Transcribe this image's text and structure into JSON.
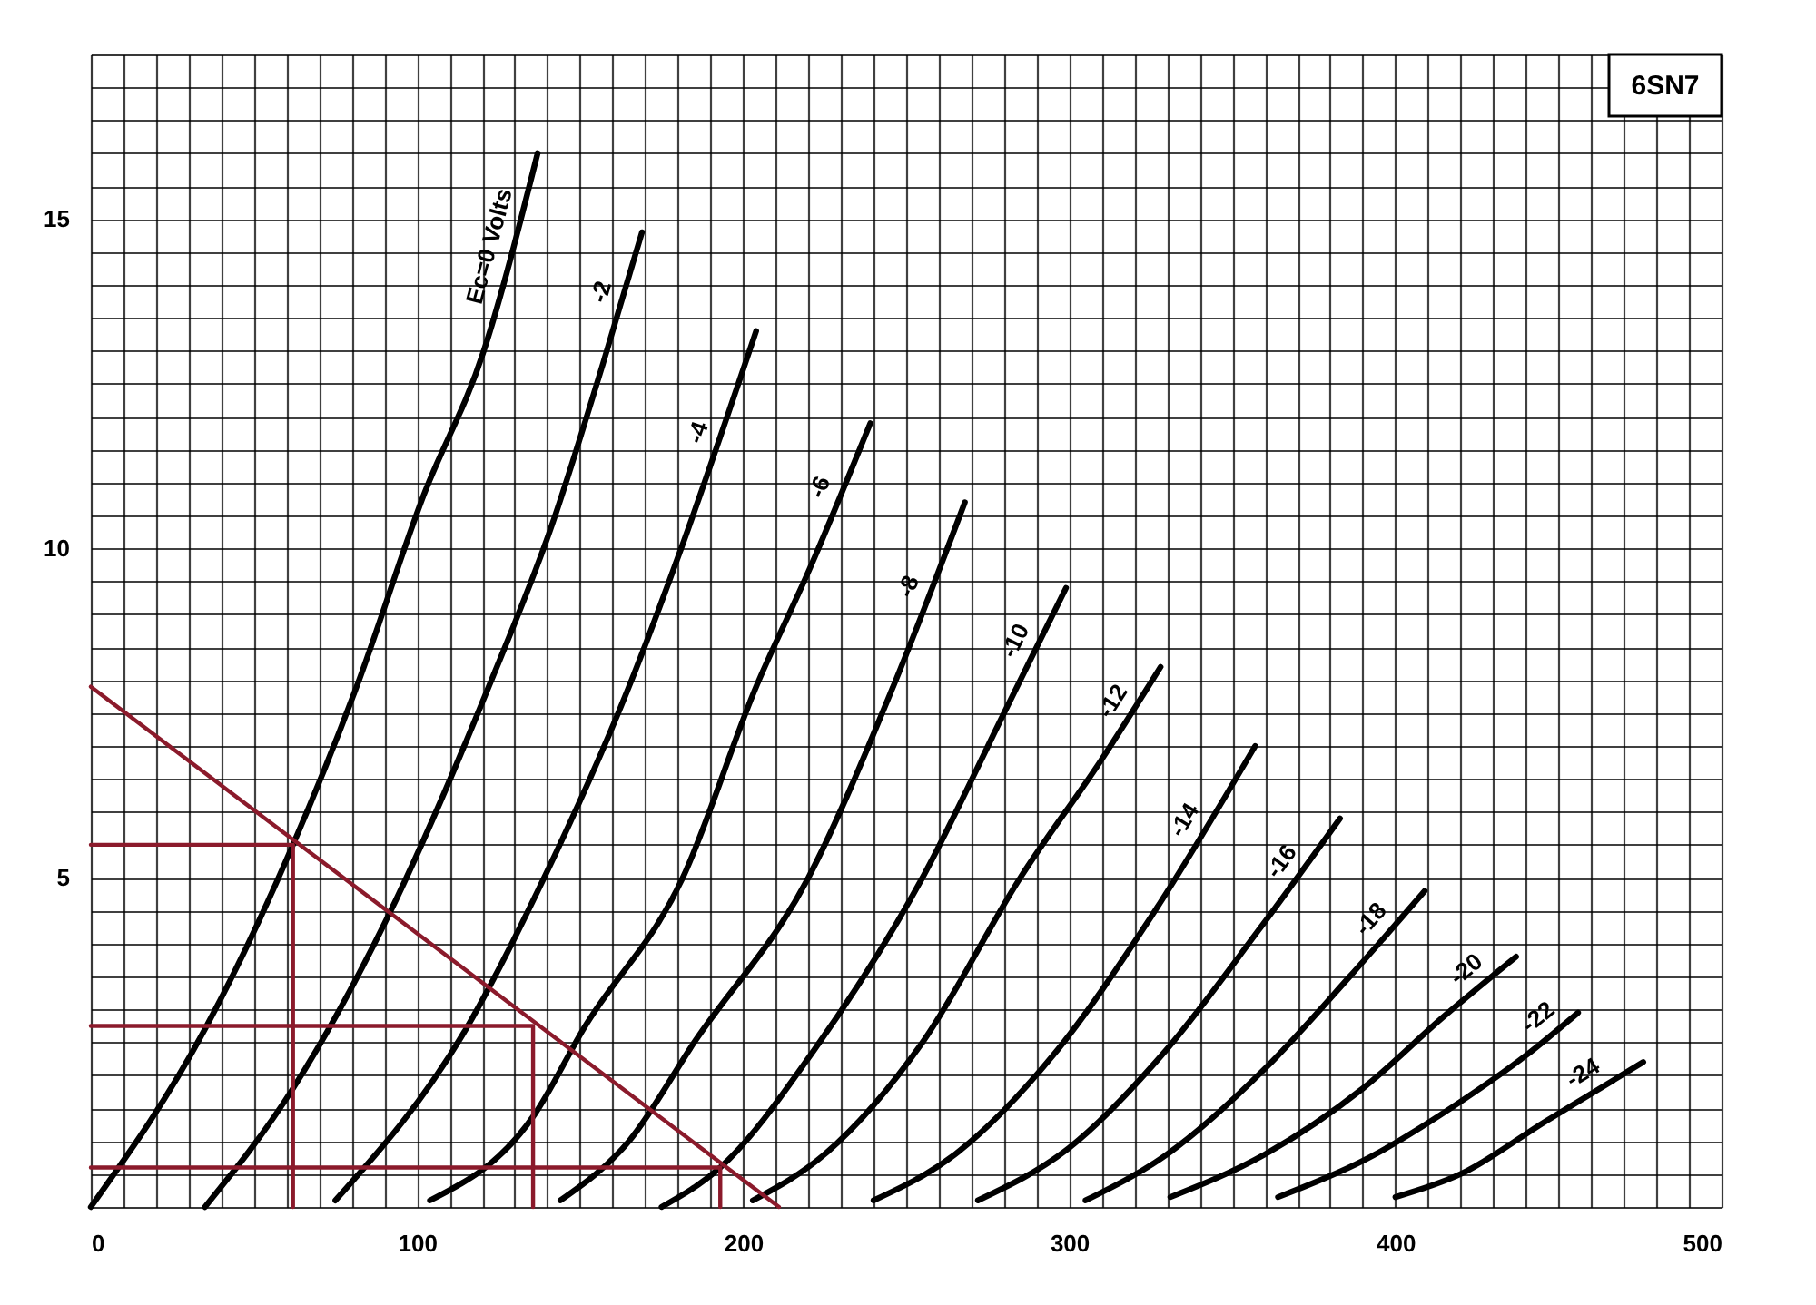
{
  "chart_data": {
    "type": "line",
    "annotations": [
      "6SN7"
    ],
    "xlim": [
      0,
      500
    ],
    "ylim": [
      0,
      17.5
    ],
    "xticks": [
      0,
      {
        "value": 10,
        "label": null
      },
      {
        "value": 20,
        "label": null
      },
      {
        "value": 30,
        "label": null
      },
      {
        "value": 40,
        "label": null
      },
      {
        "value": 50,
        "label": null
      },
      {
        "value": 60,
        "label": null
      },
      {
        "value": 70,
        "label": null
      },
      {
        "value": 80,
        "label": null
      },
      {
        "value": 90,
        "label": null
      },
      100,
      {
        "value": 110,
        "label": null
      },
      {
        "value": 120,
        "label": null
      },
      {
        "value": 130,
        "label": null
      },
      {
        "value": 140,
        "label": null
      },
      {
        "value": 150,
        "label": null
      },
      {
        "value": 160,
        "label": null
      },
      {
        "value": 170,
        "label": null
      },
      {
        "value": 180,
        "label": null
      },
      {
        "value": 190,
        "label": null
      },
      200,
      {
        "value": 210,
        "label": null
      },
      {
        "value": 220,
        "label": null
      },
      {
        "value": 230,
        "label": null
      },
      {
        "value": 240,
        "label": null
      },
      {
        "value": 250,
        "label": null
      },
      {
        "value": 260,
        "label": null
      },
      {
        "value": 270,
        "label": null
      },
      {
        "value": 280,
        "label": null
      },
      {
        "value": 290,
        "label": null
      },
      300,
      {
        "value": 310,
        "label": null
      },
      {
        "value": 320,
        "label": null
      },
      {
        "value": 330,
        "label": null
      },
      {
        "value": 340,
        "label": null
      },
      {
        "value": 350,
        "label": null
      },
      {
        "value": 360,
        "label": null
      },
      {
        "value": 370,
        "label": null
      },
      {
        "value": 380,
        "label": null
      },
      {
        "value": 390,
        "label": null
      },
      400,
      {
        "value": 410,
        "label": null
      },
      {
        "value": 420,
        "label": null
      },
      {
        "value": 430,
        "label": null
      },
      {
        "value": 440,
        "label": null
      },
      {
        "value": 450,
        "label": null
      },
      {
        "value": 460,
        "label": null
      },
      {
        "value": 470,
        "label": null
      },
      {
        "value": 480,
        "label": null
      },
      {
        "value": 490,
        "label": null
      },
      500
    ],
    "yticks": [
      {
        "value": 0,
        "label": null
      },
      {
        "value": 0.5,
        "label": null
      },
      {
        "value": 1,
        "label": null
      },
      {
        "value": 1.5,
        "label": null
      },
      {
        "value": 2,
        "label": null
      },
      {
        "value": 2.5,
        "label": null
      },
      {
        "value": 3,
        "label": null
      },
      {
        "value": 3.5,
        "label": null
      },
      {
        "value": 4,
        "label": null
      },
      {
        "value": 4.5,
        "label": null
      },
      5,
      {
        "value": 5.5,
        "label": null
      },
      {
        "value": 6,
        "label": null
      },
      {
        "value": 6.5,
        "label": null
      },
      {
        "value": 7,
        "label": null
      },
      {
        "value": 7.5,
        "label": null
      },
      {
        "value": 8,
        "label": null
      },
      {
        "value": 8.5,
        "label": null
      },
      {
        "value": 9,
        "label": null
      },
      {
        "value": 9.5,
        "label": null
      },
      10,
      {
        "value": 10.5,
        "label": null
      },
      {
        "value": 11,
        "label": null
      },
      {
        "value": 11.5,
        "label": null
      },
      {
        "value": 12,
        "label": null
      },
      {
        "value": 12.5,
        "label": null
      },
      {
        "value": 13,
        "label": null
      },
      {
        "value": 13.5,
        "label": null
      },
      {
        "value": 14,
        "label": null
      },
      {
        "value": 14.5,
        "label": null
      },
      15,
      {
        "value": 15.5,
        "label": null
      },
      {
        "value": 16,
        "label": null
      },
      {
        "value": 16.5,
        "label": null
      },
      {
        "value": 17,
        "label": null
      },
      {
        "value": 17.5,
        "label": null
      }
    ],
    "grid": true,
    "marker": "none",
    "line_style": "solid",
    "series": [
      {
        "name": "Ec=0 Volts",
        "color": "#000000",
        "x": [
          0,
          35,
          62,
          81.5,
          102,
          120.5,
          137
        ],
        "values": [
          0,
          2.7,
          5.5,
          7.9,
          10.8,
          13.0,
          16.0
        ]
      },
      {
        "name": "-2",
        "color": "#000000",
        "x": [
          35,
          62,
          91,
          122,
          141,
          157,
          169
        ],
        "values": [
          0,
          1.8,
          4.4,
          7.9,
          10.3,
          12.8,
          14.8
        ]
      },
      {
        "name": "-4",
        "color": "#000000",
        "x": [
          75,
          115,
          139,
          165,
          181,
          204
        ],
        "values": [
          0.1,
          2.7,
          5.0,
          7.9,
          10.0,
          13.3
        ]
      },
      {
        "name": "-6",
        "color": "#000000",
        "x": [
          104,
          136,
          151,
          181.5,
          204,
          220.5,
          239
        ],
        "values": [
          0.1,
          1.4,
          2.7,
          5.0,
          7.9,
          9.7,
          11.9
        ]
      },
      {
        "name": "-8",
        "color": "#000000",
        "x": [
          144,
          165,
          185,
          220,
          246,
          268
        ],
        "values": [
          0.1,
          1.0,
          2.5,
          5.0,
          7.9,
          10.7
        ]
      },
      {
        "name": "-10",
        "color": "#000000",
        "x": [
          175,
          193,
          222,
          255,
          280,
          299
        ],
        "values": [
          0,
          0.6,
          2.4,
          5.0,
          7.5,
          9.4
        ]
      },
      {
        "name": "-12",
        "color": "#000000",
        "x": [
          203,
          225,
          255,
          285,
          310,
          328
        ],
        "values": [
          0.1,
          0.8,
          2.5,
          5.0,
          6.8,
          8.2
        ]
      },
      {
        "name": "-14",
        "color": "#000000",
        "x": [
          240,
          265,
          295,
          325,
          357
        ],
        "values": [
          0.1,
          0.8,
          2.3,
          4.4,
          7.0
        ]
      },
      {
        "name": "-16",
        "color": "#000000",
        "x": [
          272,
          300,
          330,
          358,
          383
        ],
        "values": [
          0.1,
          0.9,
          2.4,
          4.2,
          5.9
        ]
      },
      {
        "name": "-18",
        "color": "#000000",
        "x": [
          305,
          330,
          360,
          386,
          409
        ],
        "values": [
          0.1,
          0.8,
          2.1,
          3.5,
          4.8
        ]
      },
      {
        "name": "-20",
        "color": "#000000",
        "x": [
          331,
          360,
          390,
          415,
          437
        ],
        "values": [
          0.15,
          0.8,
          1.8,
          2.9,
          3.8
        ]
      },
      {
        "name": "-22",
        "color": "#000000",
        "x": [
          364,
          390,
          420,
          440,
          456
        ],
        "values": [
          0.15,
          0.7,
          1.6,
          2.3,
          2.95
        ]
      },
      {
        "name": "-24",
        "color": "#000000",
        "x": [
          400,
          420,
          446,
          476
        ],
        "values": [
          0.15,
          0.5,
          1.3,
          2.2
        ]
      },
      {
        "color": "#8b1a2b",
        "x": [
          0,
          211
        ],
        "values": [
          7.9,
          0
        ]
      },
      {
        "color": "#8b1a2b",
        "x": [
          0,
          62,
          62
        ],
        "values": [
          5.5,
          5.5,
          0
        ]
      },
      {
        "color": "#8b1a2b",
        "x": [
          0,
          135.6,
          135.6
        ],
        "values": [
          2.75,
          2.75,
          0
        ]
      },
      {
        "color": "#8b1a2b",
        "x": [
          0,
          193,
          193
        ],
        "values": [
          0.6,
          0.6,
          0
        ]
      }
    ]
  }
}
